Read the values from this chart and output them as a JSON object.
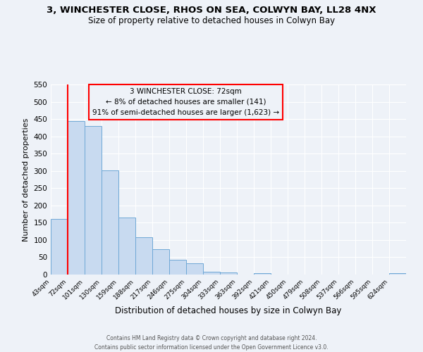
{
  "title": "3, WINCHESTER CLOSE, RHOS ON SEA, COLWYN BAY, LL28 4NX",
  "subtitle": "Size of property relative to detached houses in Colwyn Bay",
  "xlabel": "Distribution of detached houses by size in Colwyn Bay",
  "ylabel": "Number of detached properties",
  "bin_labels": [
    "43sqm",
    "72sqm",
    "101sqm",
    "130sqm",
    "159sqm",
    "188sqm",
    "217sqm",
    "246sqm",
    "275sqm",
    "304sqm",
    "333sqm",
    "363sqm",
    "392sqm",
    "421sqm",
    "450sqm",
    "479sqm",
    "508sqm",
    "537sqm",
    "566sqm",
    "595sqm",
    "624sqm"
  ],
  "bar_heights": [
    160,
    445,
    430,
    302,
    165,
    107,
    73,
    42,
    33,
    9,
    7,
    0,
    5,
    0,
    0,
    0,
    0,
    0,
    0,
    0,
    4
  ],
  "bar_color": "#c8daf0",
  "bar_edge_color": "#6fa8d6",
  "red_line_x": 1,
  "ylim": [
    0,
    550
  ],
  "yticks": [
    0,
    50,
    100,
    150,
    200,
    250,
    300,
    350,
    400,
    450,
    500,
    550
  ],
  "annotation_title": "3 WINCHESTER CLOSE: 72sqm",
  "annotation_line1": "← 8% of detached houses are smaller (141)",
  "annotation_line2": "91% of semi-detached houses are larger (1,623) →",
  "footer_line1": "Contains HM Land Registry data © Crown copyright and database right 2024.",
  "footer_line2": "Contains public sector information licensed under the Open Government Licence v3.0.",
  "background_color": "#eef2f8"
}
